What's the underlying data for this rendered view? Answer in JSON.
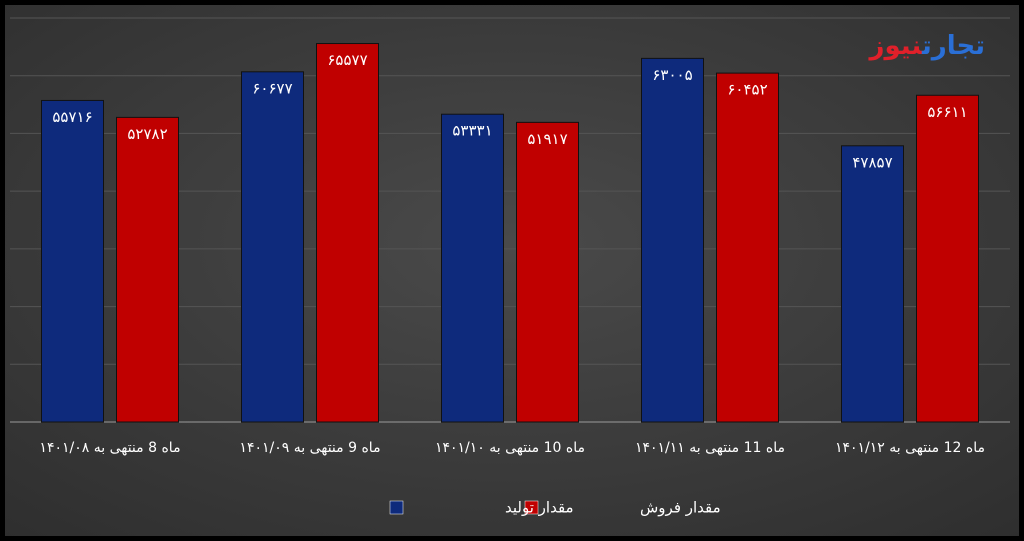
{
  "chart_data": {
    "type": "bar",
    "logo": [
      "تجارت",
      "نیوز"
    ],
    "categories": [
      "ماه 8 منتهی به ۱۴۰۱/۰۸",
      "ماه 9 منتهی به ۱۴۰۱/۰۹",
      "ماه 10 منتهی به ۱۴۰۱/۱۰",
      "ماه 11 منتهی به ۱۴۰۱/۱۱",
      "ماه 12 منتهی به ۱۴۰۱/۱۲"
    ],
    "series": [
      {
        "name": "مقدار تولید",
        "color": "#0e2a7c",
        "values": [
          55716,
          60677,
          53331,
          63005,
          47857
        ],
        "value_labels": [
          "۵۵۷۱۶",
          "۶۰۶۷۷",
          "۵۳۳۳۱",
          "۶۳۰۰۵",
          "۴۷۸۵۷"
        ]
      },
      {
        "name": "مقدار فروش",
        "color": "#c00000",
        "values": [
          52782,
          65577,
          51917,
          60452,
          56611
        ],
        "value_labels": [
          "۵۲۷۸۲",
          "۶۵۵۷۷",
          "۵۱۹۱۷",
          "۶۰۴۵۲",
          "۵۶۶۱۱"
        ]
      }
    ],
    "ylim": [
      0,
      70000
    ],
    "yticks": [
      0,
      10000,
      20000,
      30000,
      40000,
      50000,
      60000,
      70000
    ],
    "grid": true
  }
}
